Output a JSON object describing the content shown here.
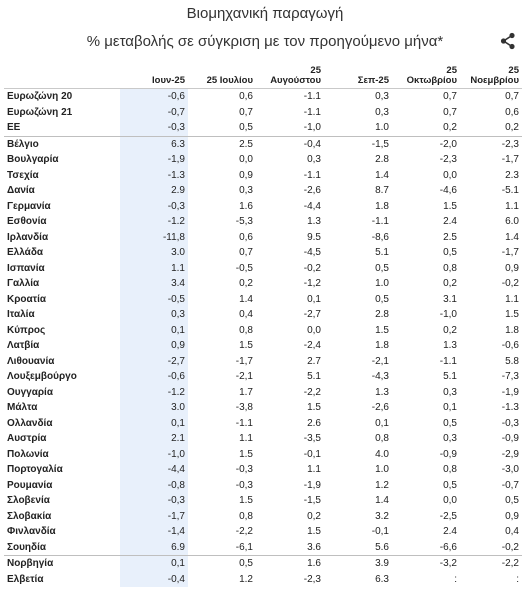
{
  "title": "Βιομηχανική παραγωγή",
  "subtitle": "% μεταβολής σε σύγκριση με τον προηγούμενο μήνα*",
  "share_icon": "share-icon",
  "highlight_color": "#e8f0fb",
  "columns": [
    {
      "label": ""
    },
    {
      "label": "Ιουν-25"
    },
    {
      "label": "25 Ιουλίου"
    },
    {
      "label": "25\nΑυγούστου"
    },
    {
      "label": "Σεπ-25"
    },
    {
      "label": "25\nΟκτωβρίου"
    },
    {
      "label": "25\nΝοεμβρίου"
    }
  ],
  "rows": [
    {
      "country": "Ευρωζώνη 20",
      "values": [
        "-0,6",
        "0,6",
        "-1.1",
        "0,3",
        "0,7",
        "0,7"
      ]
    },
    {
      "country": "Ευρωζώνη 21",
      "values": [
        "-0,7",
        "0,7",
        "-1.1",
        "0,3",
        "0,7",
        "0,6"
      ]
    },
    {
      "country": "ΕΕ",
      "values": [
        "-0,3",
        "0,5",
        "-1,0",
        "1.0",
        "0,2",
        "0,2"
      ]
    },
    {
      "country": "Βέλγιο",
      "values": [
        "6.3",
        "2.5",
        "-0,4",
        "-1,5",
        "-2,0",
        "-2,3"
      ],
      "sep": true
    },
    {
      "country": "Βουλγαρία",
      "values": [
        "-1,9",
        "0,0",
        "0,3",
        "2.8",
        "-2,3",
        "-1,7"
      ]
    },
    {
      "country": "Τσεχία",
      "values": [
        "-1.3",
        "0,9",
        "-1.1",
        "1.4",
        "0,0",
        "2.3"
      ]
    },
    {
      "country": "Δανία",
      "values": [
        "2.9",
        "0,3",
        "-2,6",
        "8.7",
        "-4,6",
        "-5.1"
      ]
    },
    {
      "country": "Γερμανία",
      "values": [
        "-0,3",
        "1.6",
        "-4,4",
        "1.8",
        "1.5",
        "1.1"
      ]
    },
    {
      "country": "Εσθονία",
      "values": [
        "-1.2",
        "-5,3",
        "1.3",
        "-1.1",
        "2.4",
        "6.0"
      ]
    },
    {
      "country": "Ιρλανδία",
      "values": [
        "-11,8",
        "0,6",
        "9.5",
        "-8,6",
        "2.5",
        "1.4"
      ]
    },
    {
      "country": "Ελλάδα",
      "values": [
        "3.0",
        "0,7",
        "-4,5",
        "5.1",
        "0,5",
        "-1,7"
      ]
    },
    {
      "country": "Ισπανία",
      "values": [
        "1.1",
        "-0,5",
        "-0,2",
        "0,5",
        "0,8",
        "0,9"
      ]
    },
    {
      "country": "Γαλλία",
      "values": [
        "3.4",
        "0,2",
        "-1,2",
        "1.0",
        "0,2",
        "-0,2"
      ]
    },
    {
      "country": "Κροατία",
      "values": [
        "-0,5",
        "1.4",
        "0,1",
        "0,5",
        "3.1",
        "1.1"
      ]
    },
    {
      "country": "Ιταλία",
      "values": [
        "0,3",
        "0,4",
        "-2,7",
        "2.8",
        "-1,0",
        "1.5"
      ]
    },
    {
      "country": "Κύπρος",
      "values": [
        "0,1",
        "0,8",
        "0,0",
        "1.5",
        "0,2",
        "1.8"
      ]
    },
    {
      "country": "Λατβία",
      "values": [
        "0,9",
        "1.5",
        "-2,4",
        "1.8",
        "1.3",
        "-0,6"
      ]
    },
    {
      "country": "Λιθουανία",
      "values": [
        "-2,7",
        "-1,7",
        "2.7",
        "-2,1",
        "-1.1",
        "5.8"
      ]
    },
    {
      "country": "Λουξεμβούργο",
      "values": [
        "-0,6",
        "-2,1",
        "5.1",
        "-4,3",
        "5.1",
        "-7,3"
      ]
    },
    {
      "country": "Ουγγαρία",
      "values": [
        "-1.2",
        "1.7",
        "-2,2",
        "1.3",
        "0,3",
        "-1,9"
      ]
    },
    {
      "country": "Μάλτα",
      "values": [
        "3.0",
        "-3,8",
        "1.5",
        "-2,6",
        "0,1",
        "-1.3"
      ]
    },
    {
      "country": "Ολλανδία",
      "values": [
        "0,1",
        "-1.1",
        "2.6",
        "0,1",
        "0,5",
        "-0,3"
      ]
    },
    {
      "country": "Αυστρία",
      "values": [
        "2.1",
        "1.1",
        "-3,5",
        "0,8",
        "0,3",
        "-0,9"
      ]
    },
    {
      "country": "Πολωνία",
      "values": [
        "-1,0",
        "1.5",
        "-0,1",
        "4.0",
        "-0,9",
        "-2,9"
      ]
    },
    {
      "country": "Πορτογαλία",
      "values": [
        "-4,4",
        "-0,3",
        "1.1",
        "1.0",
        "0,8",
        "-3,0"
      ]
    },
    {
      "country": "Ρουμανία",
      "values": [
        "-0,8",
        "-0,3",
        "-1,9",
        "1.2",
        "0,5",
        "-0,7"
      ]
    },
    {
      "country": "Σλοβενία",
      "values": [
        "-0,3",
        "1.5",
        "-1,5",
        "1.4",
        "0,0",
        "0,5"
      ]
    },
    {
      "country": "Σλοβακία",
      "values": [
        "-1,7",
        "0,8",
        "0,2",
        "3.2",
        "-2,5",
        "0,9"
      ]
    },
    {
      "country": "Φινλανδία",
      "values": [
        "-1,4",
        "-2,2",
        "1.5",
        "-0,1",
        "2.4",
        "0,4"
      ]
    },
    {
      "country": "Σουηδία",
      "values": [
        "6.9",
        "-6,1",
        "3.6",
        "5.6",
        "-6,6",
        "-0,2"
      ]
    },
    {
      "country": "Νορβηγία",
      "values": [
        "0,1",
        "0,5",
        "1.6",
        "3.9",
        "-3,2",
        "-2,2"
      ],
      "sep": true
    },
    {
      "country": "Ελβετία",
      "values": [
        "-0,4",
        "1.2",
        "-2,3",
        "6.3",
        ":",
        ":"
      ]
    }
  ]
}
